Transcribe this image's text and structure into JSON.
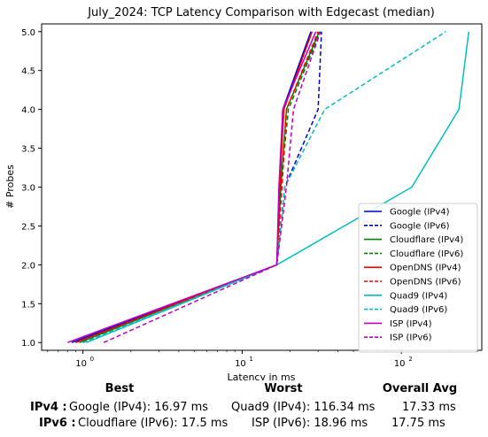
{
  "chart_data": {
    "type": "line",
    "title": "July_2024: TCP Latency Comparison with Edgecast (median)",
    "xlabel": "Latency in ms",
    "ylabel": "# Probes",
    "xscale": "log",
    "xlim": [
      0.55,
      320
    ],
    "ylim": [
      0.9,
      5.1
    ],
    "xticks": [
      1,
      10,
      100
    ],
    "xtick_labels": [
      "10^0",
      "10^1",
      "10^2"
    ],
    "yticks": [
      1.0,
      1.5,
      2.0,
      2.5,
      3.0,
      3.5,
      4.0,
      4.5,
      5.0
    ],
    "ytick_labels": [
      "1.0",
      "1.5",
      "2.0",
      "2.5",
      "3.0",
      "3.5",
      "4.0",
      "4.5",
      "5.0"
    ],
    "grid": false,
    "legend_position": "lower-right",
    "series": [
      {
        "name": "Google (IPv4)",
        "color": "#0000cc",
        "dash": false,
        "x": [
          0.85,
          16.5,
          17.3,
          18.0,
          27.0
        ],
        "y": [
          1,
          2,
          3,
          4,
          5
        ]
      },
      {
        "name": "Google (IPv6)",
        "color": "#0000cc",
        "dash": true,
        "x": [
          0.9,
          16.5,
          18.5,
          30.0,
          31.5
        ],
        "y": [
          1,
          2,
          3,
          4,
          5
        ]
      },
      {
        "name": "Cloudflare (IPv4)",
        "color": "#008000",
        "dash": false,
        "x": [
          0.95,
          16.5,
          17.5,
          19.0,
          30.5
        ],
        "y": [
          1,
          2,
          3,
          4,
          5
        ]
      },
      {
        "name": "Cloudflare (IPv6)",
        "color": "#008000",
        "dash": true,
        "x": [
          1.0,
          16.5,
          17.5,
          19.5,
          31.0
        ],
        "y": [
          1,
          2,
          3,
          4,
          5
        ]
      },
      {
        "name": "OpenDNS (IPv4)",
        "color": "#ff0000",
        "dash": false,
        "x": [
          0.9,
          16.5,
          17.2,
          18.3,
          27.5
        ],
        "y": [
          1,
          2,
          3,
          4,
          5
        ]
      },
      {
        "name": "OpenDNS (IPv6)",
        "color": "#ff0000",
        "dash": true,
        "x": [
          1.0,
          16.5,
          17.8,
          19.0,
          30.0
        ],
        "y": [
          1,
          2,
          3,
          4,
          5
        ]
      },
      {
        "name": "Quad9 (IPv4)",
        "color": "#00bfbf",
        "dash": false,
        "x": [
          1.05,
          16.5,
          116.34,
          230.0,
          265.0
        ],
        "y": [
          1,
          2,
          3,
          4,
          5
        ]
      },
      {
        "name": "Quad9 (IPv6)",
        "color": "#00bfbf",
        "dash": true,
        "x": [
          1.0,
          16.5,
          18.5,
          33.0,
          190.0
        ],
        "y": [
          1,
          2,
          3,
          4,
          5
        ]
      },
      {
        "name": "ISP (IPv4)",
        "color": "#bf00bf",
        "dash": false,
        "x": [
          0.8,
          16.5,
          17.0,
          18.0,
          29.0
        ],
        "y": [
          1,
          2,
          3,
          4,
          5
        ]
      },
      {
        "name": "ISP (IPv6)",
        "color": "#bf00bf",
        "dash": true,
        "x": [
          1.35,
          16.5,
          18.96,
          21.0,
          31.0
        ],
        "y": [
          1,
          2,
          3,
          4,
          5
        ]
      }
    ]
  },
  "summary": {
    "headers": {
      "best": "Best",
      "worst": "Worst",
      "avg": "Overall Avg"
    },
    "ipv4": {
      "label": "IPv4 :",
      "best": "Google (IPv4): 16.97 ms",
      "worst": "Quad9 (IPv4): 116.34 ms",
      "avg": "17.33 ms"
    },
    "ipv6": {
      "label": "IPv6 :",
      "best": "Cloudflare (IPv6): 17.5 ms",
      "worst": "ISP (IPv6): 18.96 ms",
      "avg": "17.75 ms"
    }
  }
}
